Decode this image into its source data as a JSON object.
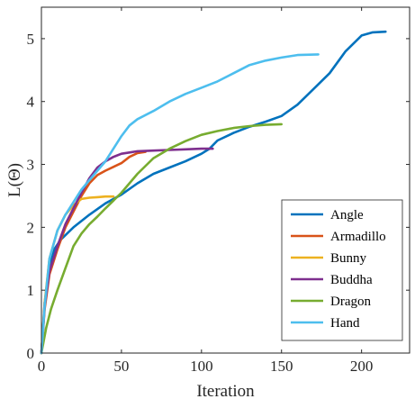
{
  "chart_data": {
    "type": "line",
    "xlabel": "Iteration",
    "ylabel": "L(Θ)",
    "xlim": [
      0,
      230
    ],
    "ylim": [
      0,
      5.5
    ],
    "xticks": [
      0,
      50,
      100,
      150,
      200
    ],
    "yticks": [
      0,
      1,
      2,
      3,
      4,
      5
    ],
    "grid": false,
    "legend_position": "bottom-right",
    "series": [
      {
        "name": "Angle",
        "color": "#0072BD",
        "points": [
          [
            0,
            0
          ],
          [
            2,
            0.8
          ],
          [
            5,
            1.35
          ],
          [
            8,
            1.65
          ],
          [
            12,
            1.8
          ],
          [
            20,
            2.0
          ],
          [
            30,
            2.2
          ],
          [
            40,
            2.38
          ],
          [
            50,
            2.52
          ],
          [
            60,
            2.7
          ],
          [
            70,
            2.85
          ],
          [
            80,
            2.95
          ],
          [
            90,
            3.05
          ],
          [
            100,
            3.17
          ],
          [
            105,
            3.25
          ],
          [
            110,
            3.38
          ],
          [
            120,
            3.5
          ],
          [
            130,
            3.6
          ],
          [
            140,
            3.68
          ],
          [
            150,
            3.77
          ],
          [
            160,
            3.95
          ],
          [
            170,
            4.2
          ],
          [
            180,
            4.45
          ],
          [
            190,
            4.8
          ],
          [
            200,
            5.05
          ],
          [
            207,
            5.1
          ],
          [
            215,
            5.11
          ]
        ]
      },
      {
        "name": "Armadillo",
        "color": "#D95319",
        "points": [
          [
            0,
            0
          ],
          [
            2,
            0.7
          ],
          [
            5,
            1.25
          ],
          [
            10,
            1.65
          ],
          [
            15,
            2.0
          ],
          [
            20,
            2.25
          ],
          [
            25,
            2.5
          ],
          [
            30,
            2.7
          ],
          [
            35,
            2.83
          ],
          [
            40,
            2.9
          ],
          [
            45,
            2.96
          ],
          [
            50,
            3.02
          ],
          [
            55,
            3.12
          ],
          [
            60,
            3.18
          ],
          [
            65,
            3.2
          ]
        ]
      },
      {
        "name": "Bunny",
        "color": "#EDB120",
        "points": [
          [
            0,
            0
          ],
          [
            2,
            0.8
          ],
          [
            5,
            1.5
          ],
          [
            10,
            1.95
          ],
          [
            15,
            2.2
          ],
          [
            20,
            2.35
          ],
          [
            25,
            2.45
          ],
          [
            30,
            2.47
          ],
          [
            35,
            2.48
          ],
          [
            40,
            2.49
          ],
          [
            45,
            2.49
          ]
        ]
      },
      {
        "name": "Buddha",
        "color": "#7E2F8E",
        "points": [
          [
            0,
            0
          ],
          [
            2,
            0.75
          ],
          [
            5,
            1.3
          ],
          [
            10,
            1.7
          ],
          [
            15,
            2.05
          ],
          [
            20,
            2.3
          ],
          [
            25,
            2.55
          ],
          [
            30,
            2.78
          ],
          [
            35,
            2.95
          ],
          [
            40,
            3.05
          ],
          [
            45,
            3.12
          ],
          [
            50,
            3.17
          ],
          [
            55,
            3.19
          ],
          [
            60,
            3.21
          ],
          [
            70,
            3.22
          ],
          [
            80,
            3.23
          ],
          [
            90,
            3.24
          ],
          [
            100,
            3.25
          ],
          [
            107,
            3.25
          ]
        ]
      },
      {
        "name": "Dragon",
        "color": "#77AC30",
        "points": [
          [
            0,
            0
          ],
          [
            3,
            0.4
          ],
          [
            6,
            0.7
          ],
          [
            10,
            1.0
          ],
          [
            15,
            1.35
          ],
          [
            20,
            1.7
          ],
          [
            25,
            1.9
          ],
          [
            30,
            2.05
          ],
          [
            35,
            2.17
          ],
          [
            40,
            2.3
          ],
          [
            50,
            2.55
          ],
          [
            60,
            2.85
          ],
          [
            70,
            3.1
          ],
          [
            80,
            3.25
          ],
          [
            90,
            3.37
          ],
          [
            100,
            3.47
          ],
          [
            110,
            3.53
          ],
          [
            120,
            3.58
          ],
          [
            130,
            3.61
          ],
          [
            140,
            3.63
          ],
          [
            150,
            3.64
          ]
        ]
      },
      {
        "name": "Hand",
        "color": "#4DBEEE",
        "points": [
          [
            0,
            0
          ],
          [
            2,
            0.75
          ],
          [
            5,
            1.5
          ],
          [
            10,
            1.95
          ],
          [
            15,
            2.2
          ],
          [
            20,
            2.4
          ],
          [
            25,
            2.6
          ],
          [
            30,
            2.75
          ],
          [
            35,
            2.9
          ],
          [
            40,
            3.05
          ],
          [
            45,
            3.25
          ],
          [
            50,
            3.45
          ],
          [
            55,
            3.62
          ],
          [
            60,
            3.72
          ],
          [
            70,
            3.85
          ],
          [
            80,
            4.0
          ],
          [
            90,
            4.12
          ],
          [
            100,
            4.22
          ],
          [
            110,
            4.32
          ],
          [
            120,
            4.45
          ],
          [
            130,
            4.58
          ],
          [
            140,
            4.65
          ],
          [
            150,
            4.7
          ],
          [
            160,
            4.74
          ],
          [
            173,
            4.75
          ]
        ]
      }
    ]
  }
}
